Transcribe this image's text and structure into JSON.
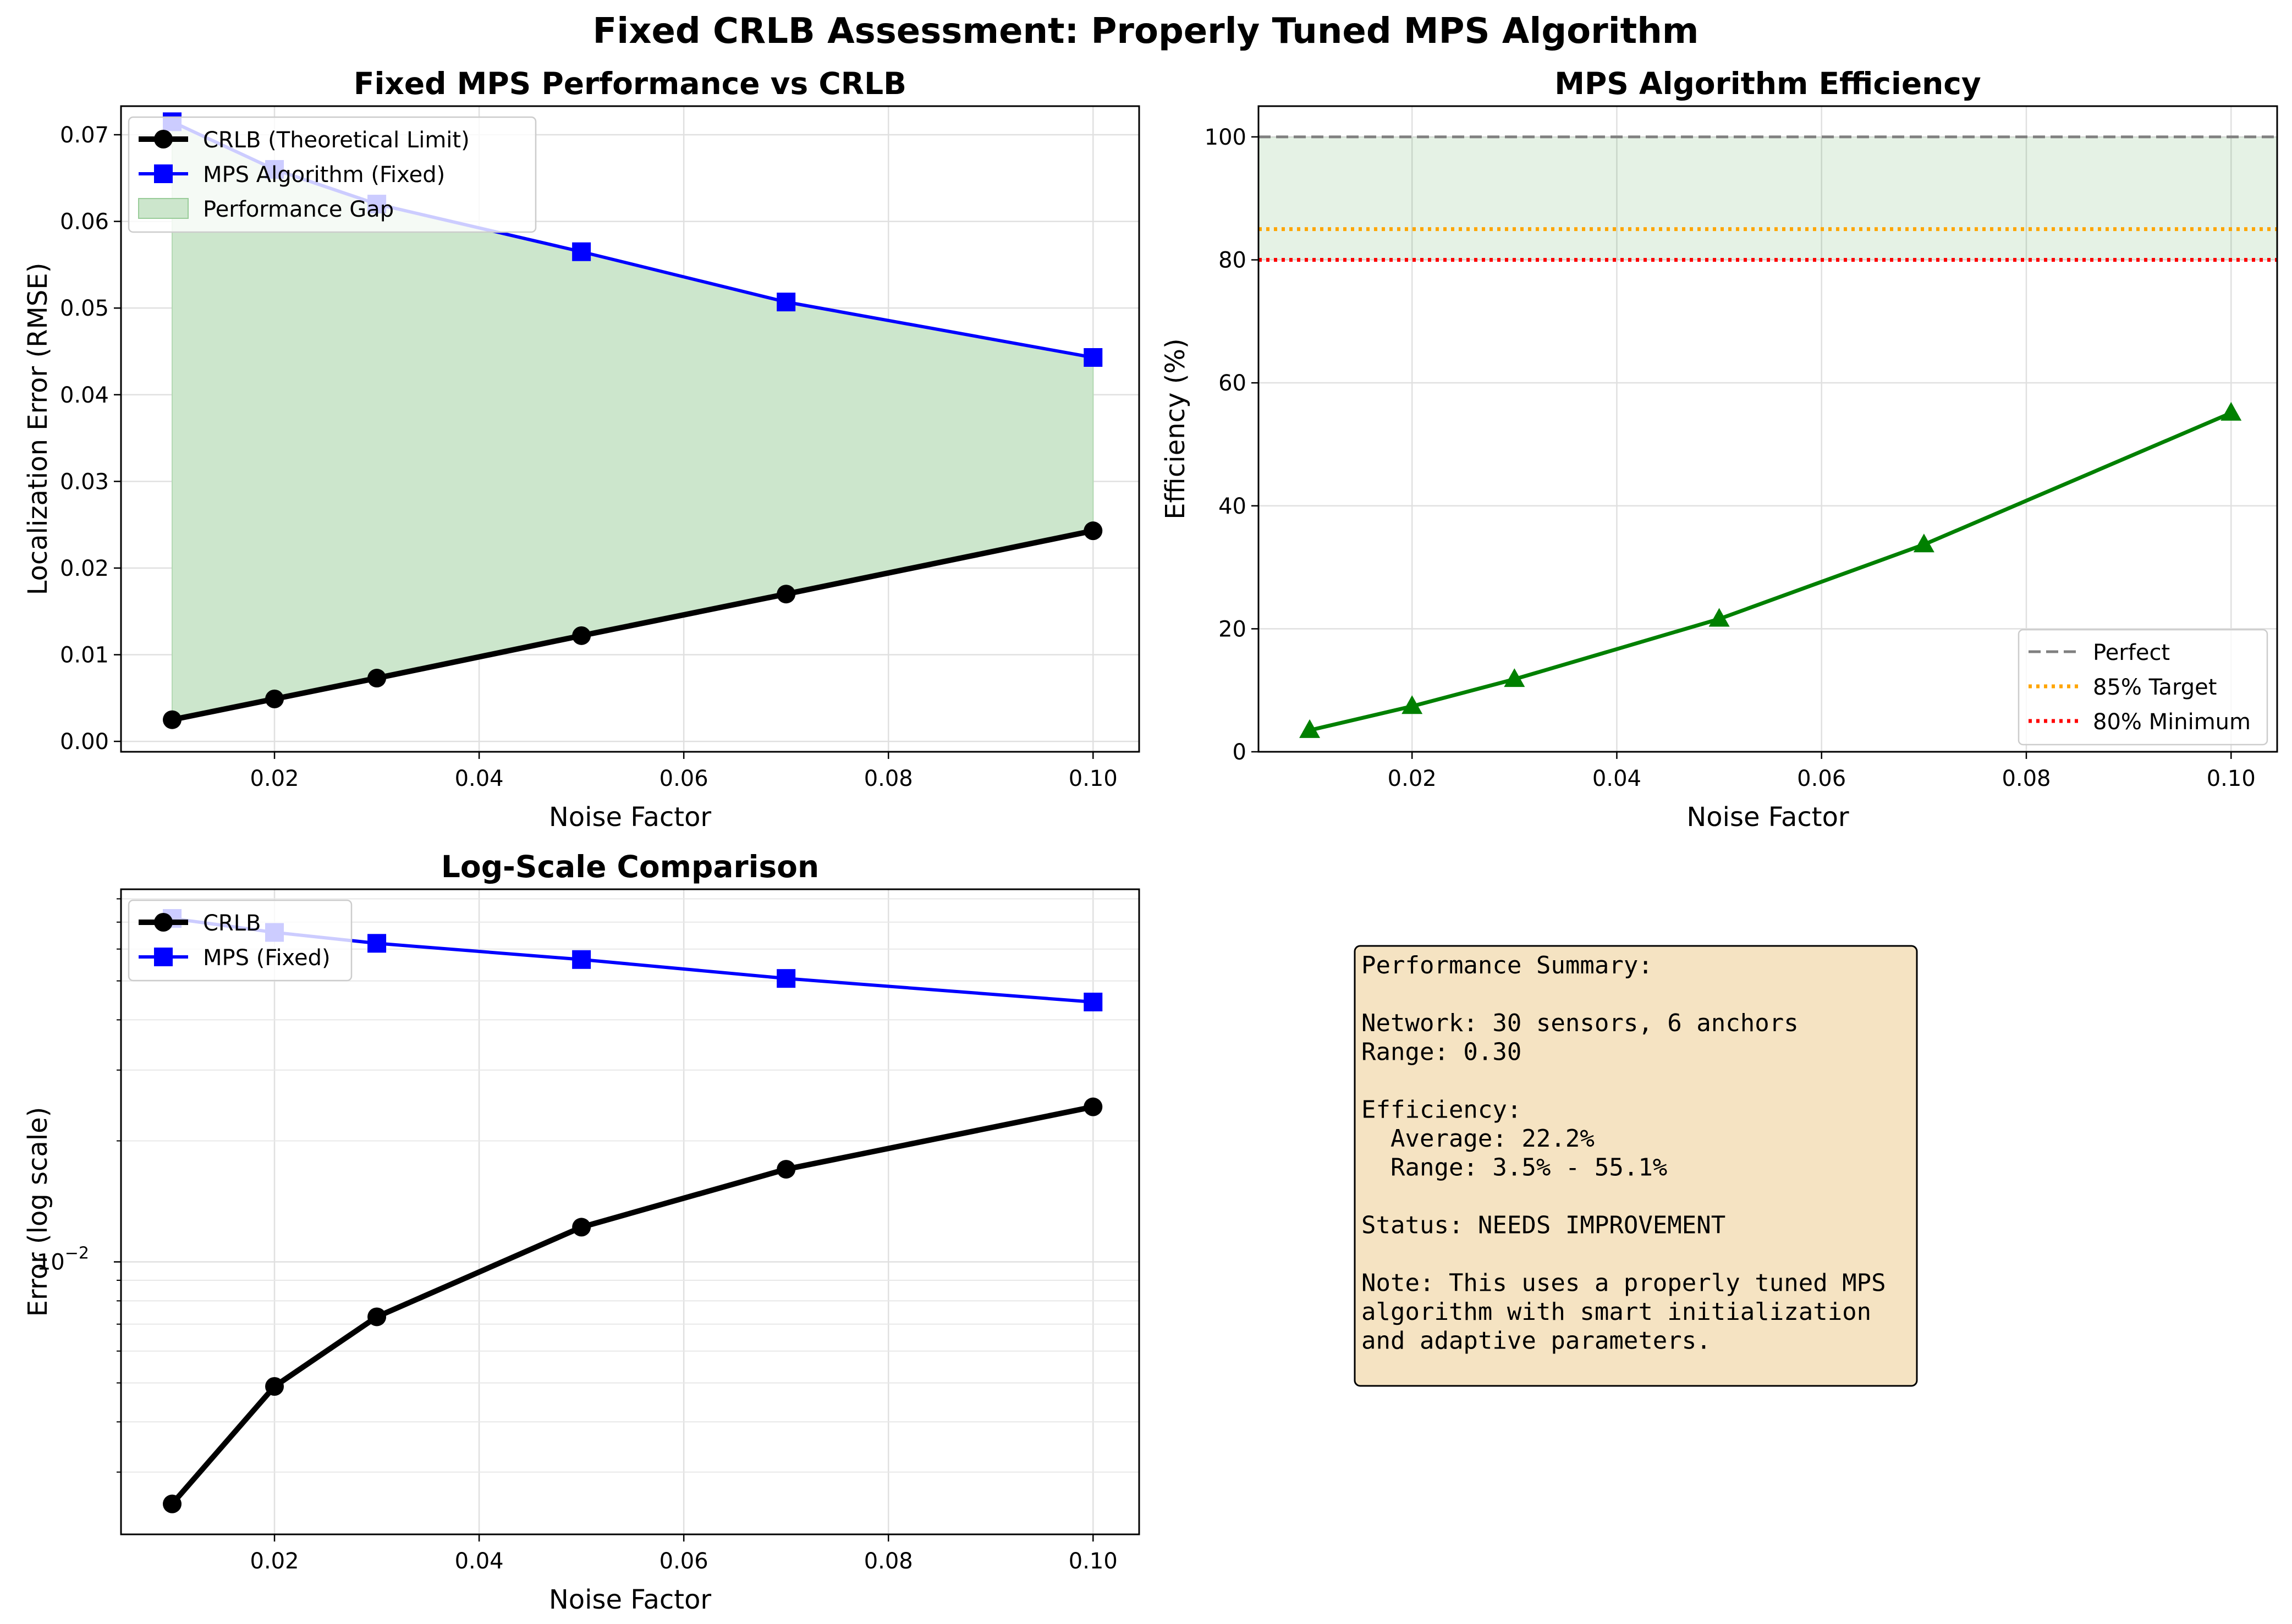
{
  "figure_title": "Fixed CRLB Assessment: Properly Tuned MPS Algorithm",
  "colors": {
    "crlb": "#000000",
    "mps": "#0000ff",
    "efficiency": "#008000",
    "gap_fill": "#cce6cc",
    "perfect": "#808080",
    "target": "#ffa500",
    "minimum": "#ff0000",
    "summary_bg": "#f5e3c2"
  },
  "chart_data": [
    {
      "type": "line",
      "title": "Fixed MPS Performance vs CRLB",
      "xlabel": "Noise Factor",
      "ylabel": "Localization Error (RMSE)",
      "x": [
        0.01,
        0.02,
        0.03,
        0.05,
        0.07,
        0.1
      ],
      "xlim": [
        0.005,
        0.1045
      ],
      "ylim": [
        -0.0012,
        0.0733
      ],
      "xticks": [
        "0.02",
        "0.04",
        "0.06",
        "0.08",
        "0.10"
      ],
      "yticks": [
        "0.00",
        "0.01",
        "0.02",
        "0.03",
        "0.04",
        "0.05",
        "0.06",
        "0.07"
      ],
      "grid": true,
      "legend_position": "upper left",
      "series": [
        {
          "name": "CRLB (Theoretical Limit)",
          "values": [
            0.0025,
            0.0049,
            0.0073,
            0.0122,
            0.017,
            0.0243
          ]
        },
        {
          "name": "MPS Algorithm (Fixed)",
          "values": [
            0.0715,
            0.066,
            0.062,
            0.0565,
            0.0507,
            0.0443
          ]
        }
      ],
      "fill_between": {
        "name": "Performance Gap"
      }
    },
    {
      "type": "line",
      "title": "MPS Algorithm Efficiency",
      "xlabel": "Noise Factor",
      "ylabel": "Efficiency (%)",
      "x": [
        0.01,
        0.02,
        0.03,
        0.05,
        0.07,
        0.1
      ],
      "xlim": [
        0.005,
        0.1045
      ],
      "ylim": [
        0,
        105
      ],
      "xticks": [
        "0.02",
        "0.04",
        "0.06",
        "0.08",
        "0.10"
      ],
      "yticks": [
        "0",
        "20",
        "40",
        "60",
        "80",
        "100"
      ],
      "grid": true,
      "legend_position": "lower right",
      "series": [
        {
          "name": "",
          "values": [
            3.5,
            7.4,
            11.8,
            21.6,
            33.7,
            55.1
          ]
        }
      ],
      "reference_lines": [
        {
          "name": "Perfect",
          "y": 100
        },
        {
          "name": "85% Target",
          "y": 85
        },
        {
          "name": "80% Minimum",
          "y": 80
        }
      ],
      "shaded_band": [
        80,
        100
      ]
    },
    {
      "type": "line",
      "title": "Log-Scale Comparison",
      "xlabel": "Noise Factor",
      "ylabel": "Error (log scale)",
      "y_scale": "log",
      "x": [
        0.01,
        0.02,
        0.03,
        0.05,
        0.07,
        0.1
      ],
      "xlim": [
        0.005,
        0.1045
      ],
      "ylim": [
        0.0021,
        0.0845
      ],
      "xticks": [
        "0.02",
        "0.04",
        "0.06",
        "0.08",
        "0.10"
      ],
      "ytick_major": "10^-2",
      "grid": true,
      "legend_position": "upper left",
      "series": [
        {
          "name": "CRLB",
          "values": [
            0.0025,
            0.0049,
            0.0073,
            0.0122,
            0.017,
            0.0243
          ]
        },
        {
          "name": "MPS (Fixed)",
          "values": [
            0.0715,
            0.066,
            0.062,
            0.0565,
            0.0507,
            0.0443
          ]
        }
      ]
    }
  ],
  "summary": {
    "lines": [
      "Performance Summary:",
      "",
      "Network: 30 sensors, 6 anchors",
      "Range: 0.30",
      "",
      "Efficiency:",
      "  Average: 22.2%",
      "  Range: 3.5% - 55.1%",
      "",
      "Status: NEEDS IMPROVEMENT",
      "",
      "Note: This uses a properly tuned MPS",
      "algorithm with smart initialization",
      "and adaptive parameters."
    ]
  }
}
